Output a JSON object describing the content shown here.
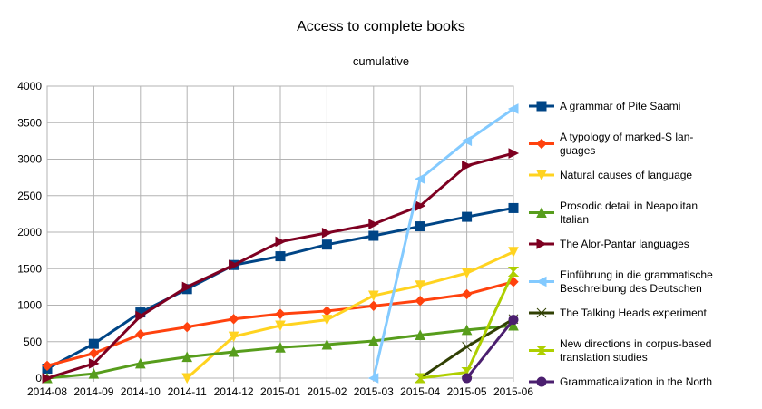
{
  "chart_data": {
    "type": "line",
    "title": "Access to complete books",
    "subtitle": "cumulative",
    "xlabel": "",
    "ylabel": "",
    "categories": [
      "2014-08",
      "2014-09",
      "2014-10",
      "2014-11",
      "2014-12",
      "2015-01",
      "2015-02",
      "2015-03",
      "2015-04",
      "2015-05",
      "2015-06"
    ],
    "ylim": [
      0,
      4000
    ],
    "yticks": [
      0,
      500,
      1000,
      1500,
      2000,
      2500,
      3000,
      3500,
      4000
    ],
    "grid": true,
    "legend_position": "right",
    "series": [
      {
        "name": "A grammar of Pite Saami",
        "legend_lines": [
          "A grammar of Pite Saami"
        ],
        "color": "#004586",
        "marker": "square",
        "values": [
          130,
          470,
          900,
          1220,
          1550,
          1670,
          1830,
          1950,
          2080,
          2210,
          2330
        ]
      },
      {
        "name": "A typology of marked-S languages",
        "legend_lines": [
          "A typology of marked-S lan-",
          "guages"
        ],
        "color": "#ff420e",
        "marker": "diamond",
        "values": [
          170,
          340,
          600,
          700,
          810,
          880,
          920,
          990,
          1060,
          1150,
          1320
        ]
      },
      {
        "name": "Natural causes of language",
        "legend_lines": [
          "Natural causes of language"
        ],
        "color": "#ffd320",
        "marker": "triangle-down",
        "values": [
          null,
          null,
          null,
          0,
          570,
          720,
          800,
          1130,
          1270,
          1440,
          1730
        ]
      },
      {
        "name": "Prosodic detail in Neapolitan Italian",
        "legend_lines": [
          "Prosodic detail in Neapolitan",
          "Italian"
        ],
        "color": "#579d1c",
        "marker": "triangle-up",
        "values": [
          0,
          60,
          200,
          290,
          360,
          420,
          460,
          510,
          590,
          660,
          720
        ]
      },
      {
        "name": "The Alor-Pantar languages",
        "legend_lines": [
          "The Alor-Pantar languages"
        ],
        "color": "#7e0021",
        "marker": "triangle-right",
        "values": [
          0,
          200,
          850,
          1250,
          1550,
          1870,
          1990,
          2110,
          2360,
          2910,
          3080
        ]
      },
      {
        "name": "Einführung in die grammatische Beschreibung des Deutschen",
        "legend_lines": [
          "Einführung in die grammatische",
          "Beschreibung des Deutschen"
        ],
        "color": "#83caff",
        "marker": "triangle-left",
        "values": [
          null,
          null,
          null,
          null,
          null,
          null,
          null,
          0,
          2730,
          3250,
          3690
        ]
      },
      {
        "name": "The Talking Heads experiment",
        "legend_lines": [
          "The Talking Heads experiment"
        ],
        "color": "#314004",
        "marker": "bowtie",
        "values": [
          null,
          null,
          null,
          null,
          null,
          null,
          null,
          null,
          0,
          430,
          810
        ]
      },
      {
        "name": "New directions in corpus-based translation studies",
        "legend_lines": [
          "New directions in corpus-based",
          "translation studies"
        ],
        "color": "#aecf00",
        "marker": "hourglass",
        "values": [
          null,
          null,
          null,
          null,
          null,
          null,
          null,
          null,
          0,
          80,
          1460
        ]
      },
      {
        "name": "Grammaticalization in the North",
        "legend_lines": [
          "Grammaticalization in the North"
        ],
        "color": "#4b1f6f",
        "marker": "circle",
        "values": [
          null,
          null,
          null,
          null,
          null,
          null,
          null,
          null,
          null,
          0,
          800
        ]
      }
    ]
  }
}
